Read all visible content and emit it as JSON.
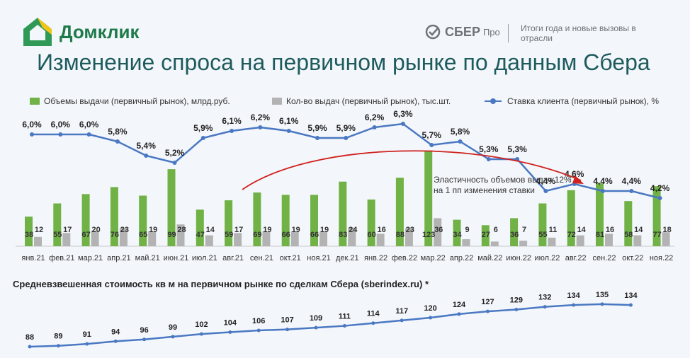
{
  "header": {
    "logo_text": "Домклик",
    "brand": "СБЕР",
    "brand_sub": "Про",
    "tagline": "Итоги года и новые вызовы в отрасли"
  },
  "title": "Изменение спроса на первичном рынке по данным Сбера",
  "annotation": "Эластичность объемов выдач 12% на 1 пп изменения ставки",
  "colors": {
    "green": "#70b245",
    "gray": "#b3b3b3",
    "blue": "#4a78c2",
    "arrow": "#d0211c",
    "title": "#1d5b5d"
  },
  "chart_data": [
    {
      "type": "bar",
      "categories": [
        "янв.21",
        "фев.21",
        "мар.21",
        "апр.21",
        "май.21",
        "июн.21",
        "июл.21",
        "авг.21",
        "сен.21",
        "окт.21",
        "ноя.21",
        "дек.21",
        "янв.22",
        "фев.22",
        "мар.22",
        "апр.22",
        "май.22",
        "июн.22",
        "июл.22",
        "авг.22",
        "сен.22",
        "окт.22",
        "ноя.22"
      ],
      "series": [
        {
          "name": "Объемы выдачи (первичный рынок), млрд.руб.",
          "values": [
            38,
            55,
            67,
            76,
            65,
            99,
            47,
            59,
            69,
            66,
            66,
            83,
            60,
            88,
            123,
            34,
            27,
            36,
            55,
            72,
            81,
            58,
            77
          ]
        },
        {
          "name": "Кол-во выдач (первичный рынок), тыс.шт.",
          "values": [
            12,
            17,
            20,
            23,
            19,
            28,
            14,
            17,
            19,
            19,
            19,
            24,
            16,
            23,
            36,
            9,
            6,
            7,
            11,
            14,
            16,
            14,
            18
          ]
        },
        {
          "name": "Ставка клиента (первичный рынок), %",
          "type": "line",
          "values": [
            6.0,
            6.0,
            6.0,
            5.8,
            5.4,
            5.2,
            5.9,
            6.1,
            6.2,
            6.1,
            5.9,
            5.9,
            6.2,
            6.3,
            5.7,
            5.8,
            5.3,
            5.3,
            4.4,
            4.6,
            4.4,
            4.4,
            4.2
          ],
          "labels": [
            "6,0%",
            "6,0%",
            "6,0%",
            "5,8%",
            "5,4%",
            "5,2%",
            "5,9%",
            "6,1%",
            "6,2%",
            "6,1%",
            "5,9%",
            "5,9%",
            "6,2%",
            "6,3%",
            "5,7%",
            "5,8%",
            "5,3%",
            "5,3%",
            "4,4%",
            "4,6%",
            "4,4%",
            "4,4%",
            "4,2%"
          ]
        }
      ]
    },
    {
      "type": "line",
      "title": "Средневзвешенная стоимость  кв м на первичном рынке по сделкам Сбера (sberindex.ru) *",
      "values": [
        88,
        89,
        91,
        94,
        96,
        99,
        102,
        104,
        106,
        107,
        109,
        111,
        114,
        117,
        120,
        124,
        127,
        129,
        132,
        134,
        135,
        134
      ]
    }
  ]
}
